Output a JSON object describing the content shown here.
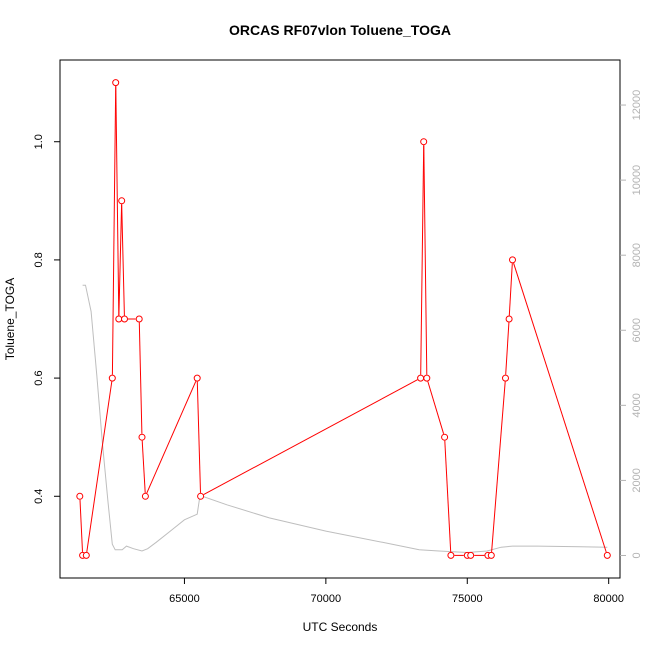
{
  "chart_data": {
    "type": "line",
    "title": "ORCAS RF07vlon Toluene_TOGA",
    "xlabel": "UTC Seconds",
    "ylabel": "Toluene_TOGA",
    "xlim": [
      60600,
      80400
    ],
    "ylim": [
      0.2617,
      1.1383
    ],
    "y2lim": [
      -600,
      13200
    ],
    "x_ticks": [
      65000,
      70000,
      75000,
      80000
    ],
    "x_tick_labels": [
      "65000",
      "70000",
      "75000",
      "80000"
    ],
    "y_ticks": [
      0.4,
      0.6,
      0.8,
      1.0
    ],
    "y_tick_labels": [
      "0.4",
      "0.6",
      "0.8",
      "1.0"
    ],
    "y2_ticks": [
      0,
      2000,
      4000,
      6000,
      8000,
      10000,
      12000
    ],
    "y2_tick_labels": [
      "0",
      "2000",
      "4000",
      "6000",
      "8000",
      "10000",
      "12000"
    ],
    "grid": false,
    "series": [
      {
        "axis": "left",
        "color": "#ff0000",
        "style": "line+open-circle",
        "x": [
          61300,
          61400,
          61530,
          62450,
          62570,
          62680,
          62780,
          62880,
          63400,
          63500,
          63620,
          65450,
          65570,
          73350,
          73460,
          73570,
          74200,
          74420,
          75000,
          75120,
          75730,
          75850,
          76350,
          76480,
          76600,
          79950
        ],
        "y": [
          0.4,
          0.3,
          0.3,
          0.6,
          1.1,
          0.7,
          0.9,
          0.7,
          0.7,
          0.5,
          0.4,
          0.6,
          0.4,
          0.6,
          1.0,
          0.6,
          0.5,
          0.3,
          0.3,
          0.3,
          0.3,
          0.3,
          0.6,
          0.7,
          0.8,
          0.3
        ]
      },
      {
        "axis": "right",
        "color": "#bebebe",
        "style": "line",
        "x": [
          61400,
          61500,
          61700,
          61900,
          62100,
          62300,
          62450,
          62550,
          62650,
          62800,
          62950,
          63200,
          63500,
          63700,
          64000,
          64500,
          65000,
          65450,
          65550,
          66500,
          68000,
          70000,
          72000,
          73300,
          74000,
          74500,
          75000,
          75700,
          76200,
          76600,
          77500,
          79000,
          79950
        ],
        "y": [
          7200,
          7200,
          6500,
          4800,
          3000,
          1400,
          300,
          150,
          150,
          150,
          250,
          180,
          120,
          180,
          350,
          650,
          950,
          1100,
          1600,
          1350,
          1000,
          650,
          350,
          150,
          120,
          100,
          80,
          120,
          220,
          250,
          250,
          230,
          220
        ]
      }
    ]
  }
}
